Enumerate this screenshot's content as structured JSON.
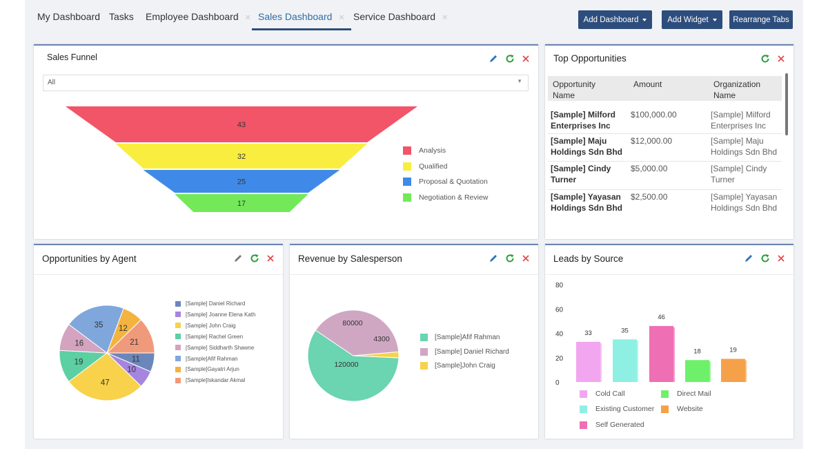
{
  "tabs": [
    {
      "label": "My Dashboard",
      "closable": false,
      "active": false
    },
    {
      "label": "Tasks",
      "closable": false,
      "active": false
    },
    {
      "label": "Employee Dashboard",
      "closable": true,
      "active": false
    },
    {
      "label": "Sales Dashboard",
      "closable": true,
      "active": true
    },
    {
      "label": "Service Dashboard",
      "closable": true,
      "active": false
    }
  ],
  "toolbar": {
    "add_dashboard": "Add Dashboard",
    "add_widget": "Add Widget",
    "rearrange_tabs": "Rearrange Tabs"
  },
  "colors": {
    "primary": "#2d4d7c",
    "edit_icon": "#2e73b8",
    "refresh_icon": "#2e9e3c",
    "close_icon": "#e24b4b"
  },
  "widgets": {
    "sales_funnel": {
      "title": "Sales Funnel",
      "filter_value": "All",
      "chart_data": {
        "type": "funnel",
        "categories": [
          "Analysis",
          "Qualified",
          "Proposal & Quotation",
          "Negotiation & Review"
        ],
        "values": [
          43,
          32,
          25,
          17
        ],
        "colors": [
          "#f25468",
          "#f9ee3f",
          "#3f8ae8",
          "#73e95a"
        ],
        "legend": "right"
      }
    },
    "top_opportunities": {
      "title": "Top Opportunities",
      "columns": [
        [
          "Opportunity",
          "Name"
        ],
        [
          "Amount"
        ],
        [
          "Organization",
          "Name"
        ]
      ],
      "rows": [
        {
          "name": [
            "[Sample] Milford",
            "Enterprises Inc"
          ],
          "amount": "$100,000.00",
          "org": [
            "[Sample] Milford",
            "Enterprises Inc"
          ]
        },
        {
          "name": [
            "[Sample] Maju",
            "Holdings Sdn Bhd"
          ],
          "amount": "$12,000.00",
          "org": [
            "[Sample] Maju",
            "Holdings Sdn Bhd"
          ]
        },
        {
          "name": [
            "[Sample] Cindy",
            "Turner"
          ],
          "amount": "$5,000.00",
          "org": [
            "[Sample] Cindy",
            "Turner"
          ]
        },
        {
          "name": [
            "[Sample] Yayasan",
            "Holdings Sdn Bhd"
          ],
          "amount": "$2,500.00",
          "org": [
            "[Sample] Yayasan",
            "Holdings Sdn Bhd"
          ]
        }
      ]
    },
    "opportunities_by_agent": {
      "title": "Opportunities by Agent",
      "chart_data": {
        "type": "pie",
        "labels": [
          "[Sample] Daniel Richard",
          "[Sample] Joanne Elena Kath",
          "[Sample] John Craig",
          "[Sample] Rachel Green",
          "[Sample] Siddharth Shawne",
          "[Sample]Afif Rahman",
          "[Sample]Gayatri Arjun",
          "[Sample]Iskandar Akmal"
        ],
        "slice_values": [
          11,
          10,
          47,
          19,
          16,
          35,
          12,
          21
        ],
        "slice_colors": [
          "#6b87ba",
          "#a585e0",
          "#f7d24a",
          "#5ccfa3",
          "#d3a3bf",
          "#7fa7db",
          "#f3b33f",
          "#f09a7c"
        ],
        "legend_colors": [
          "#6b87ba",
          "#a585e0",
          "#f7d24a",
          "#5ccfa3",
          "#d3a3bf",
          "#7fa7db",
          "#f3b33f",
          "#f09a7c"
        ],
        "legend": "right"
      }
    },
    "revenue_by_salesperson": {
      "title": "Revenue by Salesperson",
      "chart_data": {
        "type": "pie",
        "labels": [
          "[Sample]Afif Rahman",
          "[Sample] Daniel Richard",
          "[Sample]John Craig"
        ],
        "values": [
          120000,
          80000,
          4300
        ],
        "colors": [
          "#6bd4b0",
          "#cfa7c3",
          "#f7d24a"
        ],
        "legend": "right"
      }
    },
    "leads_by_source": {
      "title": "Leads by Source",
      "chart_data": {
        "type": "bar",
        "categories": [
          "Cold Call",
          "Existing Customer",
          "Self Generated",
          "Direct Mail",
          "Website"
        ],
        "values": [
          33,
          35,
          46,
          18,
          19
        ],
        "colors": [
          "#f2a6f0",
          "#8ef0e3",
          "#ee6fb3",
          "#6ef06a",
          "#f5a14a"
        ],
        "ylim": [
          0,
          80
        ],
        "yticks": [
          "80",
          "60",
          "40",
          "20",
          "0"
        ],
        "legend": "bottom"
      }
    }
  }
}
